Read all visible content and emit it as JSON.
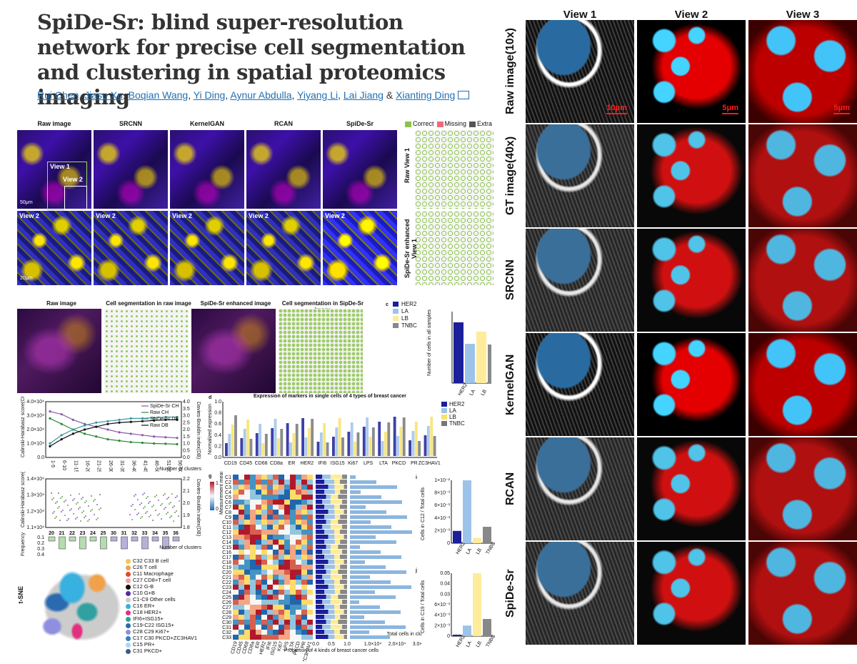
{
  "paper": {
    "title": "SpiDe-Sr: blind super-resolution network for precise cell segmentation and clustering in spatial proteomics imaging",
    "authors": [
      "Rui Chen",
      "Jiasu Xu",
      "Boqian Wang",
      "Yi Ding",
      "Aynur Abdulla",
      "Yiyang Li",
      "Lai Jiang",
      "Xianting Ding"
    ],
    "author_sep": ",",
    "amp": "&"
  },
  "panel_a": {
    "columns": [
      "Raw image",
      "SRCNN",
      "KernelGAN",
      "RCAN",
      "SpiDe-Sr"
    ],
    "view1": "View 1",
    "view2": "View 2",
    "scale_top": "50μm",
    "scale_bottom": "20μm",
    "legend": [
      "Correct",
      "Missing",
      "Extra"
    ],
    "legend_colors": [
      "#8bc34a",
      "#f06a7a",
      "#555555"
    ],
    "side_labels": [
      "Raw View 1",
      "SpiDe-Sr enhanced View 1"
    ]
  },
  "panel_b": {
    "columns": [
      "Raw image",
      "Cell segmentation in raw image",
      "SpiDe-Sr enhanced image",
      "Cell segmentation in SipDe-Sr image"
    ]
  },
  "panel_c": {
    "letter": "c",
    "ylabel": "Number of cells in all samples",
    "legend": [
      "HER2",
      "LA",
      "LB",
      "TNBC"
    ],
    "colors": [
      "#1b1f9a",
      "#9ec3ea",
      "#ffec9a",
      "#888888"
    ]
  },
  "panel_d": {
    "letter": "d",
    "title": "Expression of markers in single cells of 4 types of breast cancer",
    "ylabel": "Normalized expression",
    "markers": [
      "CD19",
      "CD45",
      "CD68",
      "CD8a",
      "ER",
      "HER2",
      "IFI6",
      "ISG15",
      "Ki67",
      "LPS",
      "LTA",
      "PKCD",
      "PR",
      "ZC3HAV1"
    ],
    "legend": [
      "HER2",
      "LA",
      "LB",
      "TNBC"
    ],
    "yticks": [
      "0.0",
      "0.2",
      "0.4",
      "0.6",
      "0.8",
      "1.0"
    ]
  },
  "panel_e": {
    "ylabel_left": "Calinski-Harabasz score(CH)",
    "ylabel_right": "Davies-Bouldin index(DB)",
    "xlabel": "Number of clusters",
    "legend": [
      "SpiDe-Sr CH",
      "Raw CH",
      "SpiDe-Sr DB",
      "Raw DB"
    ],
    "x_ticks": [
      "1-5",
      "6-10",
      "11-15",
      "16-20",
      "21-25",
      "26-30",
      "31-35",
      "36-40",
      "41-45",
      "46-50",
      "51-55",
      "56-60"
    ],
    "yticks_left": [
      "0.0",
      "1.0×10⁴",
      "2.0×10⁴",
      "3.0×10⁴",
      "4.0×10⁴"
    ],
    "yticks_right": [
      "0.0",
      "0.5",
      "1.0",
      "1.5",
      "2.0",
      "2.5",
      "3.0",
      "3.5",
      "4.0"
    ]
  },
  "panel_f": {
    "ylabel_left": "Calinski-Harabasz score(CH)",
    "ylabel_right": "Davies-Bouldin index(DB)",
    "xlabel": "Number of clusters",
    "x_ticks": [
      "20",
      "21",
      "22",
      "23",
      "24",
      "25",
      "30",
      "31",
      "32",
      "33",
      "34",
      "35",
      "36"
    ],
    "yticks_left": [
      "1.1×10⁴",
      "1.2×10⁴",
      "1.3×10⁴",
      "1.4×10⁴"
    ],
    "yticks_right": [
      "1.8",
      "1.9",
      "2.0",
      "2.1",
      "2.2"
    ],
    "freq_label": "Frequency",
    "freq_ticks": [
      "0.1",
      "0.2",
      "0.3",
      "0.4"
    ]
  },
  "panel_g": {
    "letter": "g",
    "colorbar_title": "Measurement mean",
    "colorbar_ticks": [
      "1",
      "0"
    ],
    "clusters": [
      "C1",
      "C2",
      "C3",
      "C4",
      "C5",
      "C6",
      "C7",
      "C8",
      "C9",
      "C10",
      "C11",
      "C12",
      "C13",
      "C14",
      "C15",
      "C16",
      "C17",
      "C18",
      "C19",
      "C20",
      "C21",
      "C22",
      "C23",
      "C24",
      "C25",
      "C26",
      "C27",
      "C28",
      "C29",
      "C30",
      "C31",
      "C32",
      "C33"
    ],
    "markers": [
      "CD19",
      "CD45",
      "CD68",
      "CD8a",
      "ER",
      "HER2",
      "IFI6",
      "ISG15",
      "Ki67",
      "LPS",
      "LTA",
      "PKCD",
      "PR",
      "ZC3HAV1"
    ],
    "prop_label": "Proportion of 4 kinds of breast cancer cells",
    "prop_ticks": [
      "0.0",
      "0.5",
      "1.0"
    ],
    "total_label": "Total cells in cluster",
    "total_ticks": [
      "1.0×10⁴",
      "2.0×10⁴",
      "3.0×10⁴"
    ]
  },
  "panel_i": {
    "letter": "i",
    "ylabel": "Cells in C12 / Total cells",
    "yticks": [
      "0",
      "2×10⁻³",
      "4×10⁻³",
      "6×10⁻³",
      "8×10⁻³",
      "1×10⁻²"
    ],
    "categories": [
      "HER2",
      "LA",
      "LB",
      "TNBC"
    ]
  },
  "panel_j": {
    "letter": "j",
    "ylabel": "Cells in C19 / Total cells",
    "yticks": [
      "0",
      "2×10⁻³",
      "4×10⁻³",
      "6×10⁻³",
      "0.03",
      "0.04",
      "0.05"
    ],
    "categories": [
      "HER2",
      "LA",
      "LB",
      "TNBC"
    ]
  },
  "panel_tsne": {
    "ylabel": "t-SNE",
    "legend": [
      "C32 C33 B cell",
      "C26 T cell",
      "C11 Macrophage",
      "C27 CD8+T cell",
      "C12 G-B",
      "C10 G+B",
      "C1-C9 Other cells",
      "C16 ER+",
      "C18 HER2+",
      "IFI6+ISG15+",
      "C19-C22 ISG15+",
      "C28 C29 Ki67+",
      "C17 C30 PKCD+ZC3HAV1",
      "C15 PR+",
      "C31 PKCD+"
    ],
    "colors": [
      "#f2c94c",
      "#f0a14a",
      "#e24a2a",
      "#f5a0a0",
      "#111111",
      "#5a2aa0",
      "#cccccc",
      "#38b0e0",
      "#e03080",
      "#30a0a0",
      "#2a6ab0",
      "#8f8fe0",
      "#3080c0",
      "#a8d8f0",
      "#3a5a8a"
    ]
  },
  "right_panel": {
    "columns": [
      "View 1",
      "View 2",
      "View 3"
    ],
    "rows": [
      "Raw image(10x)",
      "GT image(40x)",
      "SRCNN",
      "KernelGAN",
      "RCAN",
      "SpiDe-Sr"
    ],
    "scalebars": [
      "10μm",
      "5μm",
      "5μm"
    ]
  },
  "chart_data": [
    {
      "type": "bar",
      "title": "",
      "categories": [
        "HER2",
        "LA",
        "LB",
        "TNBC"
      ],
      "values": [
        85000,
        55000,
        72000,
        54000
      ],
      "ylabel": "Number of cells in all samples",
      "ylim": [
        0,
        100000
      ]
    },
    {
      "type": "line",
      "xlabel": "Number of clusters",
      "x": [
        "1-5",
        "6-10",
        "11-15",
        "16-20",
        "21-25",
        "26-30",
        "31-35",
        "36-40",
        "41-45",
        "46-50",
        "51-55",
        "56-60"
      ],
      "series": [
        {
          "name": "SpiDe-Sr CH",
          "values": [
            33000,
            31000,
            27000,
            24000,
            22000,
            20000,
            18000,
            17000,
            16000,
            15000,
            14500,
            14000
          ]
        },
        {
          "name": "Raw CH",
          "values": [
            28000,
            24000,
            20000,
            17000,
            15000,
            13000,
            12000,
            11000,
            10500,
            10000,
            9800,
            9500
          ]
        },
        {
          "name": "SpiDe-Sr DB",
          "values": [
            1.0,
            1.6,
            2.0,
            2.3,
            2.5,
            2.6,
            2.7,
            2.8,
            2.8,
            2.85,
            2.9,
            2.9
          ]
        },
        {
          "name": "Raw DB",
          "values": [
            0.8,
            1.3,
            1.7,
            2.0,
            2.2,
            2.4,
            2.5,
            2.55,
            2.6,
            2.65,
            2.7,
            2.7
          ]
        }
      ]
    },
    {
      "type": "bar",
      "ylabel": "Cells in C12 / Total cells",
      "categories": [
        "HER2",
        "LA",
        "LB",
        "TNBC"
      ],
      "values": [
        0.0018,
        0.0092,
        0.0008,
        0.0024
      ],
      "ylim": [
        0,
        0.01
      ]
    },
    {
      "type": "bar",
      "ylabel": "Cells in C19 / Total cells",
      "categories": [
        "HER2",
        "LA",
        "LB",
        "TNBC"
      ],
      "values": [
        0.0003,
        0.0024,
        0.05,
        0.0039
      ]
    }
  ]
}
